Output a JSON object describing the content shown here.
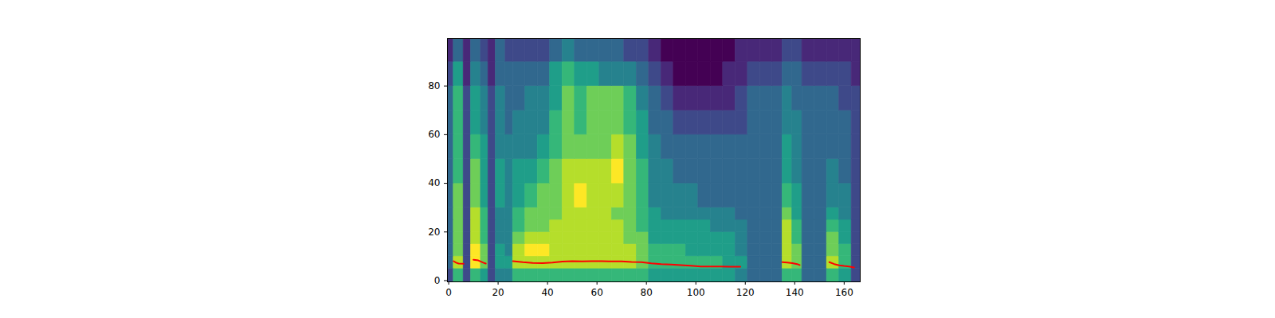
{
  "chart_data": {
    "type": "heatmap",
    "xlim": [
      -0.5,
      166.5
    ],
    "ylim": [
      -0.5,
      99.5
    ],
    "xticks": [
      0,
      20,
      40,
      60,
      80,
      100,
      120,
      140,
      160
    ],
    "yticks": [
      0,
      20,
      40,
      60,
      80
    ],
    "grid": false,
    "cells": {
      "color": "viridis",
      "zlim": [
        0,
        9
      ],
      "x_edges": [
        -0.5,
        2,
        6,
        9,
        13,
        16,
        19,
        23,
        26,
        31,
        36,
        41,
        46,
        51,
        56,
        61,
        66,
        71,
        76,
        81,
        86,
        91,
        96,
        101,
        106,
        111,
        116,
        121,
        126,
        131,
        135,
        139,
        143,
        148,
        153,
        158,
        163,
        166.5
      ],
      "y_edges": [
        -0.5,
        5,
        10,
        15,
        20,
        25,
        30,
        40,
        50,
        60,
        70,
        80,
        90,
        99.5
      ],
      "z": [
        [
          2,
          6,
          2,
          6,
          5,
          2,
          4,
          4,
          6,
          6,
          6,
          6,
          6,
          6,
          6,
          6,
          6,
          6,
          6,
          5,
          5,
          5,
          5,
          5,
          5,
          5,
          4,
          3,
          3,
          3,
          6,
          6,
          3,
          3,
          6,
          5,
          2
        ],
        [
          3,
          8,
          2,
          9,
          7,
          2,
          5,
          5,
          8,
          8,
          8,
          8,
          8,
          8,
          8,
          8,
          8,
          8,
          7,
          6,
          6,
          6,
          6,
          6,
          6,
          5,
          5,
          3,
          3,
          3,
          8,
          7,
          3,
          3,
          8,
          6,
          2
        ],
        [
          3,
          7,
          2,
          9,
          7,
          2,
          5,
          4,
          8,
          9,
          9,
          8,
          8,
          8,
          8,
          8,
          8,
          8,
          7,
          6,
          6,
          6,
          5,
          5,
          5,
          5,
          4,
          3,
          3,
          3,
          8,
          7,
          3,
          3,
          7,
          6,
          2
        ],
        [
          3,
          7,
          2,
          8,
          6,
          2,
          4,
          4,
          7,
          8,
          8,
          8,
          8,
          8,
          8,
          8,
          8,
          7,
          7,
          5,
          5,
          5,
          5,
          5,
          5,
          5,
          4,
          3,
          3,
          3,
          8,
          6,
          3,
          3,
          7,
          5,
          2
        ],
        [
          3,
          7,
          2,
          8,
          6,
          2,
          4,
          4,
          6,
          7,
          7,
          8,
          8,
          8,
          8,
          8,
          8,
          7,
          6,
          5,
          5,
          5,
          5,
          5,
          4,
          4,
          4,
          3,
          3,
          3,
          8,
          6,
          3,
          3,
          6,
          5,
          2
        ],
        [
          3,
          7,
          2,
          8,
          6,
          2,
          4,
          4,
          6,
          7,
          7,
          7,
          8,
          8,
          8,
          8,
          7,
          7,
          6,
          5,
          4,
          4,
          4,
          4,
          4,
          4,
          3,
          3,
          3,
          3,
          7,
          5,
          3,
          3,
          5,
          4,
          2
        ],
        [
          3,
          7,
          2,
          7,
          5,
          2,
          5,
          4,
          5,
          6,
          7,
          7,
          8,
          9,
          8,
          8,
          8,
          7,
          6,
          4,
          4,
          4,
          4,
          3,
          3,
          3,
          3,
          3,
          3,
          3,
          6,
          5,
          3,
          3,
          4,
          4,
          2
        ],
        [
          3,
          6,
          2,
          7,
          5,
          2,
          5,
          4,
          5,
          5,
          6,
          7,
          8,
          8,
          8,
          8,
          9,
          7,
          6,
          4,
          4,
          3,
          3,
          3,
          3,
          3,
          3,
          3,
          3,
          3,
          5,
          4,
          3,
          3,
          4,
          3,
          2
        ],
        [
          3,
          6,
          2,
          6,
          5,
          2,
          4,
          4,
          4,
          4,
          5,
          6,
          7,
          7,
          7,
          7,
          8,
          7,
          5,
          4,
          3,
          3,
          3,
          3,
          3,
          3,
          3,
          3,
          3,
          3,
          5,
          4,
          3,
          3,
          3,
          3,
          2
        ],
        [
          3,
          6,
          2,
          5,
          4,
          2,
          4,
          3,
          4,
          4,
          4,
          6,
          7,
          6,
          7,
          7,
          7,
          6,
          5,
          3,
          3,
          2,
          2,
          2,
          2,
          2,
          2,
          3,
          3,
          3,
          4,
          4,
          3,
          3,
          3,
          3,
          2
        ],
        [
          3,
          6,
          2,
          5,
          4,
          2,
          4,
          3,
          3,
          4,
          4,
          5,
          7,
          6,
          7,
          7,
          7,
          6,
          4,
          3,
          2,
          1,
          1,
          1,
          1,
          1,
          2,
          3,
          3,
          3,
          4,
          3,
          3,
          3,
          3,
          2,
          2
        ],
        [
          2,
          5,
          1,
          4,
          3,
          1,
          3,
          3,
          3,
          3,
          3,
          5,
          6,
          5,
          5,
          4,
          4,
          4,
          3,
          2,
          1,
          0,
          0,
          0,
          0,
          1,
          1,
          2,
          2,
          2,
          3,
          3,
          2,
          2,
          2,
          2,
          1
        ],
        [
          1,
          3,
          1,
          3,
          2,
          1,
          3,
          2,
          2,
          2,
          2,
          3,
          4,
          3,
          3,
          3,
          3,
          2,
          2,
          1,
          0,
          0,
          0,
          0,
          0,
          0,
          1,
          1,
          1,
          1,
          2,
          2,
          1,
          1,
          1,
          1,
          1
        ]
      ]
    },
    "series": [
      {
        "type": "line",
        "color": "red",
        "x": [
          2,
          3,
          4,
          6,
          8,
          10,
          12,
          14,
          15,
          20,
          26,
          30,
          34,
          38,
          42,
          46,
          50,
          54,
          58,
          62,
          66,
          70,
          74,
          78,
          82,
          86,
          90,
          94,
          98,
          102,
          106,
          110,
          114,
          118,
          126,
          135,
          137,
          139,
          141,
          142,
          148,
          154,
          156,
          158,
          160,
          162,
          164
        ],
        "values": [
          8,
          7.4,
          7,
          6.9,
          null,
          8.6,
          8.3,
          7.4,
          7,
          null,
          8,
          7.6,
          7.3,
          7.2,
          7.4,
          7.8,
          8,
          7.9,
          8,
          8,
          7.9,
          7.9,
          7.7,
          7.6,
          7.1,
          6.8,
          6.6,
          6.4,
          6.1,
          5.8,
          5.8,
          5.8,
          5.7,
          5.7,
          null,
          7.6,
          7.4,
          7.2,
          6.8,
          6.4,
          null,
          7.6,
          6.8,
          6.3,
          6.0,
          5.8,
          5.4
        ]
      }
    ]
  }
}
